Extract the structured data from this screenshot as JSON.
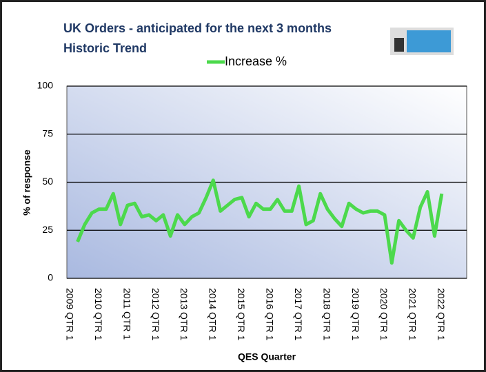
{
  "chart_data": {
    "type": "line",
    "title": "UK Orders - anticipated for the next 3 months",
    "subtitle": "Historic Trend",
    "x_label": "QES Quarter",
    "y_label": "% of response",
    "categories": [
      "2009 QTR 1",
      null,
      null,
      null,
      "2010 QTR 1",
      null,
      null,
      null,
      "2011 QTR 1",
      null,
      null,
      null,
      "2012 QTR 1",
      null,
      null,
      null,
      "2013 QTR 1",
      null,
      null,
      null,
      "2014 QTR 1",
      null,
      null,
      null,
      "2015 QTR 1",
      null,
      null,
      null,
      "2016 QTR 1",
      null,
      null,
      null,
      "2017 QTR 1",
      null,
      null,
      null,
      "2018 QTR 1",
      null,
      null,
      null,
      "2019 QTR 1",
      null,
      null,
      null,
      "2020 QTR 1",
      null,
      null,
      null,
      "2021 QTR 1",
      null,
      null,
      null,
      "2022 QTR 1",
      null,
      null,
      null
    ],
    "series": [
      {
        "name": "Increase %",
        "color": "#4cd94c",
        "values": [
          null,
          19,
          28,
          34,
          36,
          36,
          44,
          28,
          38,
          39,
          32,
          33,
          30,
          33,
          22,
          33,
          28,
          32,
          34,
          42,
          51,
          35,
          38,
          41,
          42,
          32,
          39,
          36,
          36,
          41,
          35,
          35,
          48,
          28,
          30,
          44,
          36,
          31,
          27,
          39,
          36,
          34,
          35,
          35,
          33,
          8,
          30,
          25,
          21,
          37,
          45,
          22,
          44,
          null,
          null,
          null
        ]
      }
    ],
    "ylim": [
      0,
      100
    ],
    "yticks": [
      0,
      25,
      50,
      75,
      100
    ],
    "grid": true,
    "legend": "top"
  }
}
